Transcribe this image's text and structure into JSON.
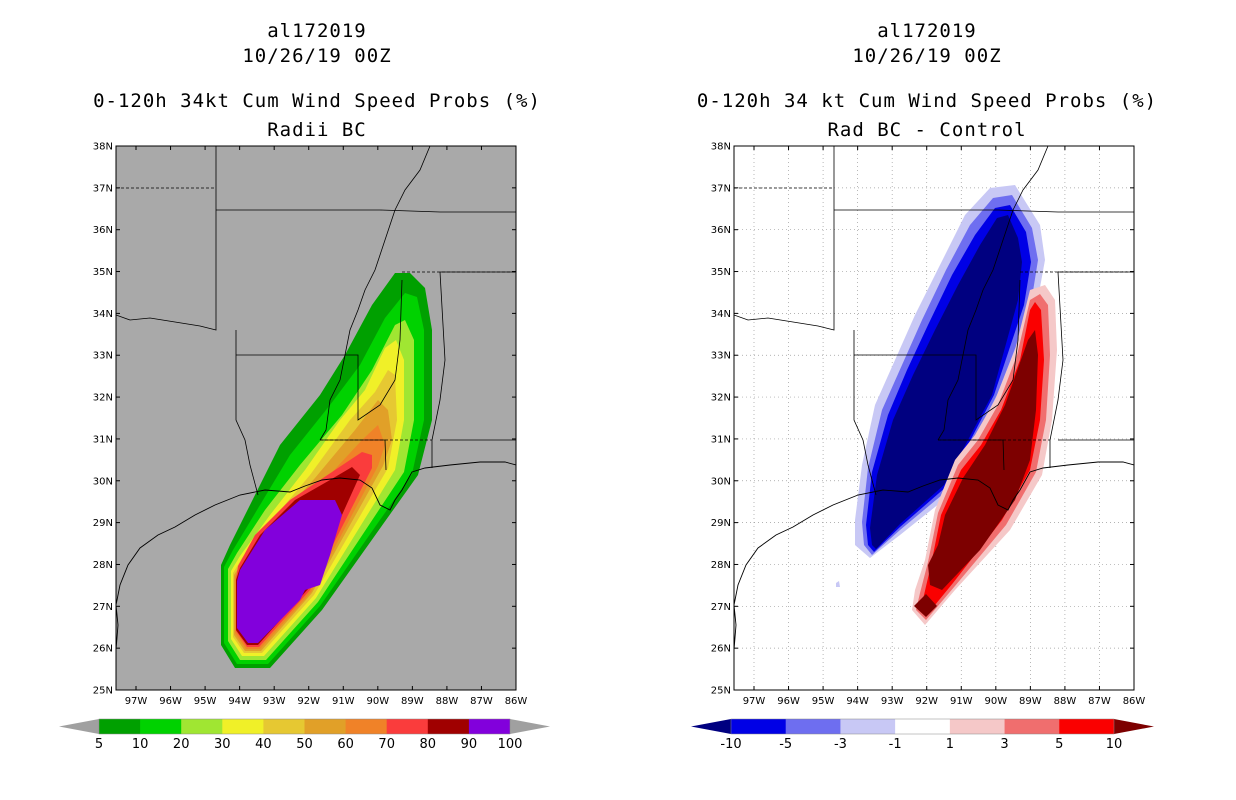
{
  "left": {
    "title_line1": "al172019",
    "title_line2": "10/26/19 00Z",
    "title_line3": "0-120h 34kt Cum Wind Speed Probs (%)",
    "title_line4": "Radii BC",
    "colorbar": {
      "labels": [
        "5",
        "10",
        "20",
        "30",
        "40",
        "50",
        "60",
        "70",
        "80",
        "90",
        "100"
      ],
      "colors": [
        "#00a000",
        "#00d200",
        "#a0e632",
        "#f0f028",
        "#e6c832",
        "#e1a028",
        "#f08228",
        "#fa3c3c",
        "#a00000",
        "#8200dc"
      ],
      "under_color": "#a0a0a0",
      "over_color": "#a0a0a0"
    }
  },
  "right": {
    "title_line1": "al172019",
    "title_line2": "10/26/19 00Z",
    "title_line3": "0-120h 34 kt Cum Wind Speed Probs (%)",
    "title_line4": "Rad BC - Control",
    "colorbar": {
      "labels": [
        "-10",
        "-5",
        "-3",
        "-1",
        "1",
        "3",
        "5",
        "10"
      ],
      "colors": [
        "#0000e6",
        "#6e6ef0",
        "#c8c8f5",
        "#ffffff",
        "#f5c8c8",
        "#f06e6e",
        "#fa0000"
      ],
      "under_color": "#000080",
      "over_color": "#7d0000"
    }
  },
  "map": {
    "lat_labels": [
      "25N",
      "26N",
      "27N",
      "28N",
      "29N",
      "30N",
      "31N",
      "32N",
      "33N",
      "34N",
      "35N",
      "36N",
      "37N",
      "38N"
    ],
    "lon_labels": [
      "97W",
      "96W",
      "95W",
      "94W",
      "93W",
      "92W",
      "91W",
      "90W",
      "89W",
      "88W",
      "87W",
      "86W"
    ]
  }
}
